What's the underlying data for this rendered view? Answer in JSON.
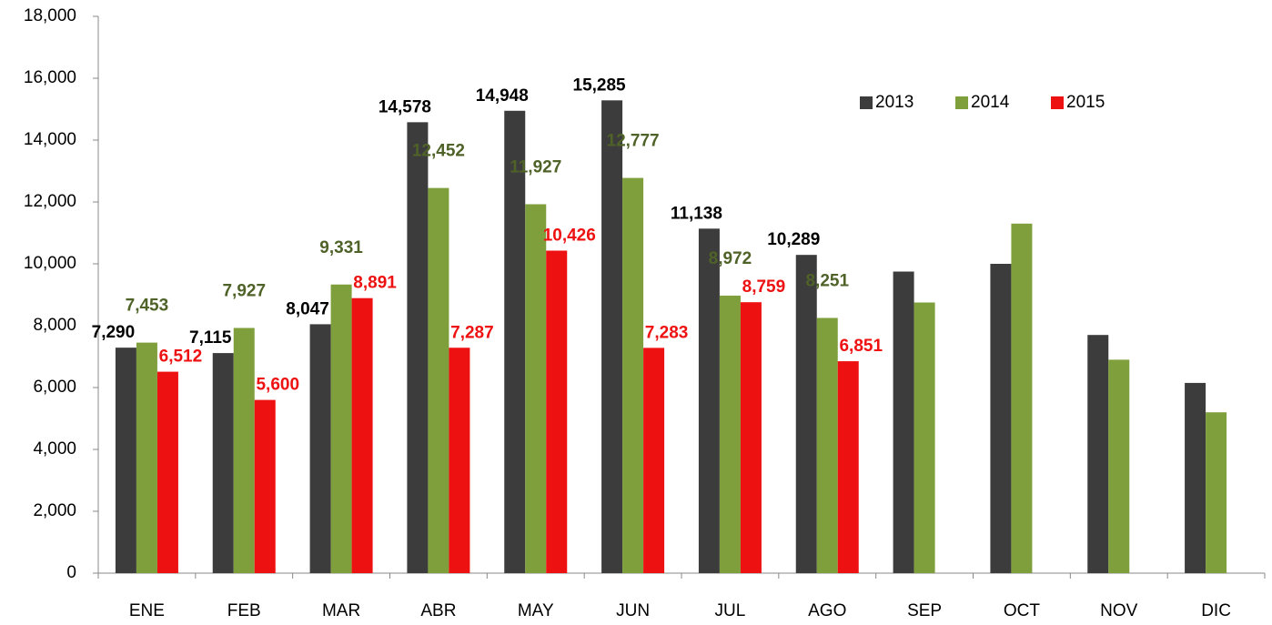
{
  "chart_data": {
    "type": "bar",
    "categories": [
      "ENE",
      "FEB",
      "MAR",
      "ABR",
      "MAY",
      "JUN",
      "JUL",
      "AGO",
      "SEP",
      "OCT",
      "NOV",
      "DIC"
    ],
    "series": [
      {
        "name": "2013",
        "color": "#3c3c3c",
        "label_color": "#000000",
        "values": [
          7290,
          7115,
          8047,
          14578,
          14948,
          15285,
          11138,
          10289,
          9750,
          10000,
          7700,
          6150
        ],
        "value_labels": [
          "7,290",
          "7,115",
          "8,047",
          "14,578",
          "14,948",
          "15,285",
          "11,138",
          "10,289",
          null,
          null,
          null,
          null
        ]
      },
      {
        "name": "2014",
        "color": "#7f9f3c",
        "label_color": "#4f6228",
        "values": [
          7453,
          7927,
          9331,
          12452,
          11927,
          12777,
          8972,
          8251,
          8750,
          11300,
          6900,
          5200
        ],
        "value_labels": [
          "7,453",
          "7,927",
          "9,331",
          "12,452",
          "11,927",
          "12,777",
          "8,972",
          "8,251",
          null,
          null,
          null,
          null
        ]
      },
      {
        "name": "2015",
        "color": "#ee1111",
        "label_color": "#ee1111",
        "values": [
          6512,
          5600,
          8891,
          7287,
          10426,
          7283,
          8759,
          6851,
          null,
          null,
          null,
          null
        ],
        "value_labels": [
          "6,512",
          "5,600",
          "8,891",
          "7,287",
          "10,426",
          "7,283",
          "8,759",
          "6,851",
          null,
          null,
          null,
          null
        ]
      }
    ],
    "ylim": [
      0,
      18000
    ],
    "yticks": [
      0,
      {
        "value": 2000,
        "label": "2,000"
      },
      {
        "value": 4000,
        "label": "4,000"
      },
      {
        "value": 6000,
        "label": "6,000"
      },
      {
        "value": 8000,
        "label": "8,000"
      },
      {
        "value": 10000,
        "label": "10,000"
      },
      {
        "value": 12000,
        "label": "12,000"
      },
      {
        "value": 14000,
        "label": "14,000"
      },
      {
        "value": 16000,
        "label": "16,000"
      },
      {
        "value": 18000,
        "label": "18,000"
      }
    ],
    "grid": false,
    "legend": "upper right"
  }
}
